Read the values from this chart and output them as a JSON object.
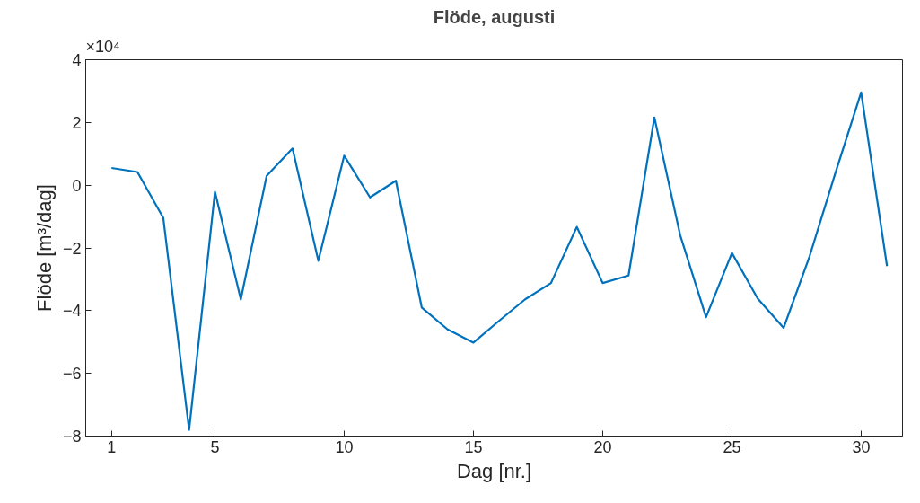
{
  "chart_data": {
    "type": "line",
    "title": "Flöde, augusti",
    "xlabel": "Dag [nr.]",
    "ylabel": "Flöde [m³/dag]",
    "annotations": [
      "×10⁴"
    ],
    "x": [
      1,
      2,
      3,
      4,
      5,
      6,
      7,
      8,
      9,
      10,
      11,
      12,
      13,
      14,
      15,
      16,
      17,
      18,
      19,
      20,
      21,
      22,
      23,
      24,
      25,
      26,
      27,
      28,
      29,
      30,
      31
    ],
    "series": [
      {
        "color": "#0072bd",
        "values": [
          0.55,
          0.42,
          -1.04,
          -7.8,
          -0.21,
          -3.64,
          0.3,
          1.17,
          -2.41,
          0.94,
          -0.39,
          0.14,
          -3.9,
          -4.6,
          -5.02,
          -4.32,
          -3.64,
          -3.12,
          -1.33,
          -3.12,
          -2.88,
          2.16,
          -1.6,
          -4.21,
          -2.16,
          -3.62,
          -4.55,
          -2.28,
          0.38,
          2.96,
          -2.58
        ]
      }
    ],
    "xlim": [
      0,
      31.6
    ],
    "xticks": [
      1,
      5,
      10,
      15,
      20,
      25,
      30
    ],
    "ylim": [
      -8,
      4
    ],
    "yticks": [
      -8,
      -6,
      -4,
      -2,
      0,
      2,
      4
    ],
    "grid": false,
    "line_style": "solid",
    "marker": "none"
  }
}
